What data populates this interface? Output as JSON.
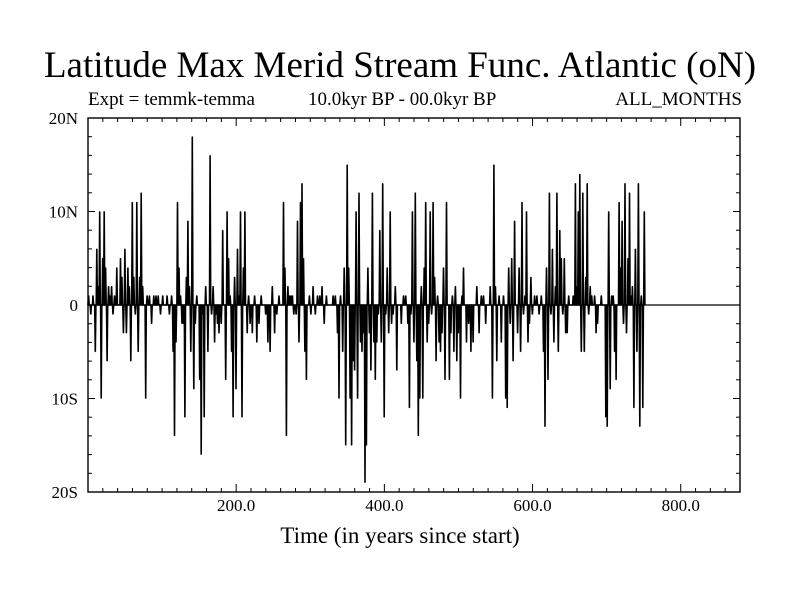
{
  "chart_data": {
    "type": "line",
    "title": "Latitude Max Merid Stream Func. Atlantic (oN)",
    "experiment_label": "Expt = temmk-temma",
    "period_label": "10.0kyr BP - 00.0kyr BP",
    "season_label": "ALL_MONTHS",
    "xlabel": "Time (in years since start)",
    "ylabel": "",
    "xlim": [
      0,
      880
    ],
    "ylim": [
      -20,
      20
    ],
    "x_ticks": [
      200,
      400,
      600,
      800
    ],
    "x_tick_labels": [
      "200.0",
      "400.0",
      "600.0",
      "800.0"
    ],
    "y_ticks": [
      20,
      10,
      0,
      -10,
      -20
    ],
    "y_tick_labels": [
      "20N",
      "10N",
      "0",
      "10S",
      "20S"
    ],
    "grid": false,
    "zero_line": true,
    "spikes": [
      [
        0,
        1
      ],
      [
        3,
        -1
      ],
      [
        6,
        1
      ],
      [
        9,
        -5
      ],
      [
        11,
        6
      ],
      [
        13,
        2
      ],
      [
        15,
        10
      ],
      [
        17,
        -10
      ],
      [
        19,
        5
      ],
      [
        21,
        10
      ],
      [
        23,
        4
      ],
      [
        25,
        -6
      ],
      [
        27,
        2
      ],
      [
        29,
        1
      ],
      [
        31,
        2
      ],
      [
        33,
        -1
      ],
      [
        35,
        1
      ],
      [
        38,
        4
      ],
      [
        40,
        0
      ],
      [
        43,
        5
      ],
      [
        45,
        3
      ],
      [
        47,
        -3
      ],
      [
        49,
        6
      ],
      [
        51,
        -3
      ],
      [
        53,
        4
      ],
      [
        55,
        2
      ],
      [
        57,
        -6
      ],
      [
        59,
        11
      ],
      [
        61,
        3
      ],
      [
        63,
        -1
      ],
      [
        65,
        11
      ],
      [
        67,
        -5
      ],
      [
        69,
        3
      ],
      [
        71,
        12
      ],
      [
        73,
        2
      ],
      [
        77,
        -10
      ],
      [
        79,
        1
      ],
      [
        82,
        1
      ],
      [
        85,
        -2
      ],
      [
        88,
        1
      ],
      [
        91,
        1
      ],
      [
        94,
        1
      ],
      [
        97,
        -1
      ],
      [
        100,
        1
      ],
      [
        103,
        0
      ],
      [
        106,
        1
      ],
      [
        109,
        -1
      ],
      [
        112,
        1
      ],
      [
        114,
        -5
      ],
      [
        116,
        -14
      ],
      [
        118,
        -4
      ],
      [
        120,
        11
      ],
      [
        122,
        4
      ],
      [
        124,
        1
      ],
      [
        126,
        -2
      ],
      [
        128,
        -2
      ],
      [
        130,
        -12
      ],
      [
        132,
        3
      ],
      [
        134,
        9
      ],
      [
        136,
        2
      ],
      [
        138,
        -5
      ],
      [
        140,
        18
      ],
      [
        142,
        -9
      ],
      [
        144,
        -2
      ],
      [
        146,
        1
      ],
      [
        148,
        0
      ],
      [
        150,
        -8
      ],
      [
        152,
        -16
      ],
      [
        154,
        -1
      ],
      [
        156,
        -12
      ],
      [
        158,
        2
      ],
      [
        161,
        -5
      ],
      [
        164,
        16
      ],
      [
        166,
        -1
      ],
      [
        168,
        2
      ],
      [
        170,
        -4
      ],
      [
        172,
        -1
      ],
      [
        174,
        -2
      ],
      [
        176,
        -3
      ],
      [
        179,
        -2
      ],
      [
        181,
        8
      ],
      [
        183,
        0
      ],
      [
        185,
        -8
      ],
      [
        187,
        10
      ],
      [
        189,
        5
      ],
      [
        191,
        1
      ],
      [
        193,
        -5
      ],
      [
        195,
        -12
      ],
      [
        197,
        3
      ],
      [
        199,
        -9
      ],
      [
        201,
        6
      ],
      [
        203,
        1
      ],
      [
        205,
        10
      ],
      [
        207,
        -12
      ],
      [
        209,
        4
      ],
      [
        211,
        10
      ],
      [
        214,
        -3
      ],
      [
        216,
        1
      ],
      [
        218,
        -2
      ],
      [
        221,
        -3
      ],
      [
        224,
        1
      ],
      [
        227,
        -4
      ],
      [
        230,
        -2
      ],
      [
        233,
        1
      ],
      [
        236,
        0
      ],
      [
        239,
        -1
      ],
      [
        242,
        -4
      ],
      [
        245,
        -5
      ],
      [
        248,
        2
      ],
      [
        251,
        -3
      ],
      [
        254,
        -1
      ],
      [
        257,
        1
      ],
      [
        260,
        0
      ],
      [
        263,
        11
      ],
      [
        265,
        4
      ],
      [
        267,
        -14
      ],
      [
        269,
        2
      ],
      [
        271,
        1
      ],
      [
        273,
        1
      ],
      [
        275,
        1
      ],
      [
        277,
        -1
      ],
      [
        280,
        -1
      ],
      [
        282,
        9
      ],
      [
        284,
        -4
      ],
      [
        286,
        11
      ],
      [
        288,
        13
      ],
      [
        290,
        5
      ],
      [
        292,
        -5
      ],
      [
        294,
        -8
      ],
      [
        296,
        0
      ],
      [
        298,
        1
      ],
      [
        300,
        -1
      ],
      [
        303,
        2
      ],
      [
        306,
        -1
      ],
      [
        309,
        1
      ],
      [
        312,
        1
      ],
      [
        315,
        2
      ],
      [
        318,
        -2
      ],
      [
        321,
        1
      ],
      [
        324,
        0
      ],
      [
        327,
        0
      ],
      [
        330,
        1
      ],
      [
        333,
        1
      ],
      [
        336,
        -3
      ],
      [
        338,
        -10
      ],
      [
        340,
        1
      ],
      [
        343,
        -5
      ],
      [
        345,
        4
      ],
      [
        347,
        -15
      ],
      [
        349,
        15
      ],
      [
        351,
        4
      ],
      [
        353,
        -10
      ],
      [
        355,
        -15
      ],
      [
        357,
        -6
      ],
      [
        359,
        -7
      ],
      [
        361,
        10
      ],
      [
        363,
        -10
      ],
      [
        365,
        12
      ],
      [
        367,
        -4
      ],
      [
        369,
        -5
      ],
      [
        371,
        -3
      ],
      [
        373,
        -19
      ],
      [
        375,
        -15
      ],
      [
        377,
        4
      ],
      [
        379,
        -3
      ],
      [
        381,
        -7
      ],
      [
        383,
        12
      ],
      [
        385,
        -4
      ],
      [
        387,
        -8
      ],
      [
        389,
        -4
      ],
      [
        391,
        -1
      ],
      [
        393,
        8
      ],
      [
        395,
        -4
      ],
      [
        397,
        13
      ],
      [
        399,
        -12
      ],
      [
        401,
        -1
      ],
      [
        403,
        4
      ],
      [
        405,
        -3
      ],
      [
        407,
        10
      ],
      [
        409,
        -2
      ],
      [
        411,
        -1
      ],
      [
        414,
        2
      ],
      [
        416,
        -7
      ],
      [
        419,
        0
      ],
      [
        422,
        -2
      ],
      [
        425,
        1
      ],
      [
        428,
        1
      ],
      [
        431,
        -2
      ],
      [
        433,
        -11
      ],
      [
        435,
        -1
      ],
      [
        437,
        10
      ],
      [
        439,
        -4
      ],
      [
        441,
        12
      ],
      [
        443,
        -6
      ],
      [
        445,
        -14
      ],
      [
        447,
        -10
      ],
      [
        449,
        2
      ],
      [
        451,
        -10
      ],
      [
        453,
        4
      ],
      [
        455,
        11
      ],
      [
        457,
        -4
      ],
      [
        459,
        -2
      ],
      [
        461,
        10
      ],
      [
        463,
        -1
      ],
      [
        465,
        11
      ],
      [
        467,
        3
      ],
      [
        469,
        -6
      ],
      [
        471,
        1
      ],
      [
        473,
        -4
      ],
      [
        475,
        -5
      ],
      [
        477,
        -3
      ],
      [
        479,
        4
      ],
      [
        481,
        -8
      ],
      [
        483,
        11
      ],
      [
        485,
        0
      ],
      [
        487,
        -8
      ],
      [
        489,
        -3
      ],
      [
        491,
        1
      ],
      [
        493,
        -5
      ],
      [
        495,
        2
      ],
      [
        497,
        -6
      ],
      [
        499,
        -3
      ],
      [
        502,
        -10
      ],
      [
        504,
        1
      ],
      [
        506,
        4
      ],
      [
        508,
        0
      ],
      [
        510,
        -4
      ],
      [
        513,
        -2
      ],
      [
        516,
        -5
      ],
      [
        519,
        -4
      ],
      [
        522,
        0
      ],
      [
        524,
        2
      ],
      [
        527,
        -3
      ],
      [
        530,
        1
      ],
      [
        533,
        1
      ],
      [
        536,
        -2
      ],
      [
        539,
        0
      ],
      [
        542,
        2
      ],
      [
        545,
        -10
      ],
      [
        547,
        15
      ],
      [
        549,
        2
      ],
      [
        551,
        -6
      ],
      [
        554,
        1
      ],
      [
        557,
        -4
      ],
      [
        560,
        1
      ],
      [
        563,
        -10
      ],
      [
        565,
        -11
      ],
      [
        567,
        4
      ],
      [
        569,
        -2
      ],
      [
        571,
        5
      ],
      [
        573,
        -6
      ],
      [
        575,
        9
      ],
      [
        577,
        0
      ],
      [
        579,
        -3
      ],
      [
        581,
        4
      ],
      [
        583,
        -5
      ],
      [
        585,
        11
      ],
      [
        587,
        -1
      ],
      [
        589,
        1
      ],
      [
        591,
        10
      ],
      [
        593,
        -4
      ],
      [
        595,
        -2
      ],
      [
        597,
        3
      ],
      [
        599,
        -1
      ],
      [
        602,
        1
      ],
      [
        605,
        1
      ],
      [
        608,
        -1
      ],
      [
        611,
        1
      ],
      [
        614,
        -5
      ],
      [
        616,
        -13
      ],
      [
        618,
        4
      ],
      [
        620,
        -8
      ],
      [
        622,
        12
      ],
      [
        624,
        -1
      ],
      [
        626,
        6
      ],
      [
        628,
        -4
      ],
      [
        630,
        2
      ],
      [
        632,
        12
      ],
      [
        634,
        -5
      ],
      [
        636,
        8
      ],
      [
        638,
        5
      ],
      [
        640,
        -1
      ],
      [
        642,
        5
      ],
      [
        644,
        -3
      ],
      [
        646,
        -3
      ],
      [
        648,
        1
      ],
      [
        651,
        0
      ],
      [
        654,
        1
      ],
      [
        657,
        13
      ],
      [
        659,
        2
      ],
      [
        661,
        10
      ],
      [
        663,
        14
      ],
      [
        665,
        -5
      ],
      [
        667,
        12
      ],
      [
        669,
        -5
      ],
      [
        671,
        3
      ],
      [
        673,
        13
      ],
      [
        675,
        -1
      ],
      [
        677,
        2
      ],
      [
        679,
        1
      ],
      [
        681,
        0
      ],
      [
        683,
        1
      ],
      [
        685,
        -3
      ],
      [
        687,
        -2
      ],
      [
        690,
        0
      ],
      [
        692,
        1
      ],
      [
        695,
        0
      ],
      [
        698,
        -12
      ],
      [
        700,
        -13
      ],
      [
        702,
        10
      ],
      [
        704,
        -9
      ],
      [
        706,
        1
      ],
      [
        708,
        1
      ],
      [
        710,
        -5
      ],
      [
        712,
        -8
      ],
      [
        714,
        0
      ],
      [
        716,
        11
      ],
      [
        718,
        4
      ],
      [
        720,
        9
      ],
      [
        722,
        -2
      ],
      [
        724,
        13
      ],
      [
        726,
        -3
      ],
      [
        728,
        5
      ],
      [
        730,
        12
      ],
      [
        732,
        1
      ],
      [
        734,
        2
      ],
      [
        736,
        -11
      ],
      [
        738,
        6
      ],
      [
        740,
        -5
      ],
      [
        742,
        13
      ],
      [
        744,
        -13
      ],
      [
        746,
        1
      ],
      [
        748,
        -11
      ],
      [
        750,
        10
      ]
    ]
  }
}
